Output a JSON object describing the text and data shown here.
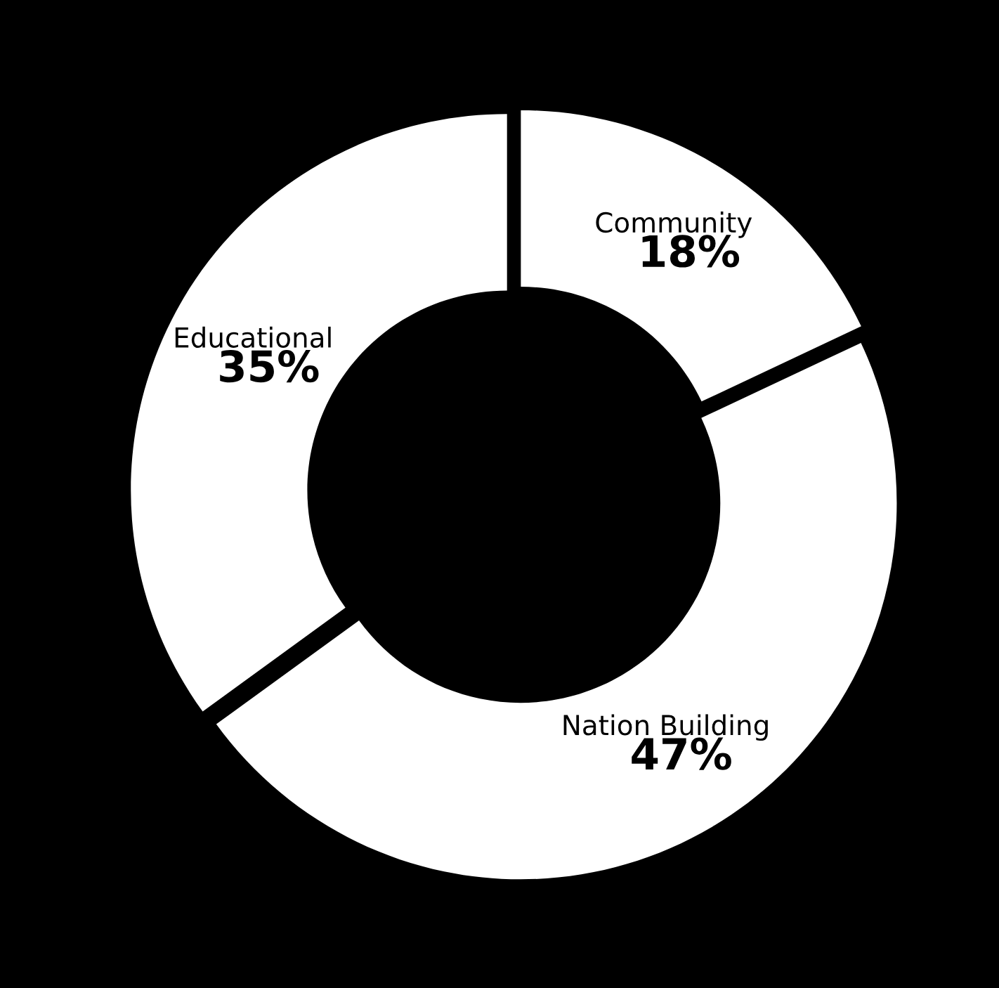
{
  "chart_data": {
    "type": "donut",
    "categories": [
      "Community",
      "Nation Building",
      "Educational"
    ],
    "values": [
      18,
      47,
      35
    ],
    "colors": [
      "#ffffff",
      "#ffffff",
      "#ffffff"
    ],
    "value_labels": [
      "18%",
      "47%",
      "35%"
    ]
  }
}
